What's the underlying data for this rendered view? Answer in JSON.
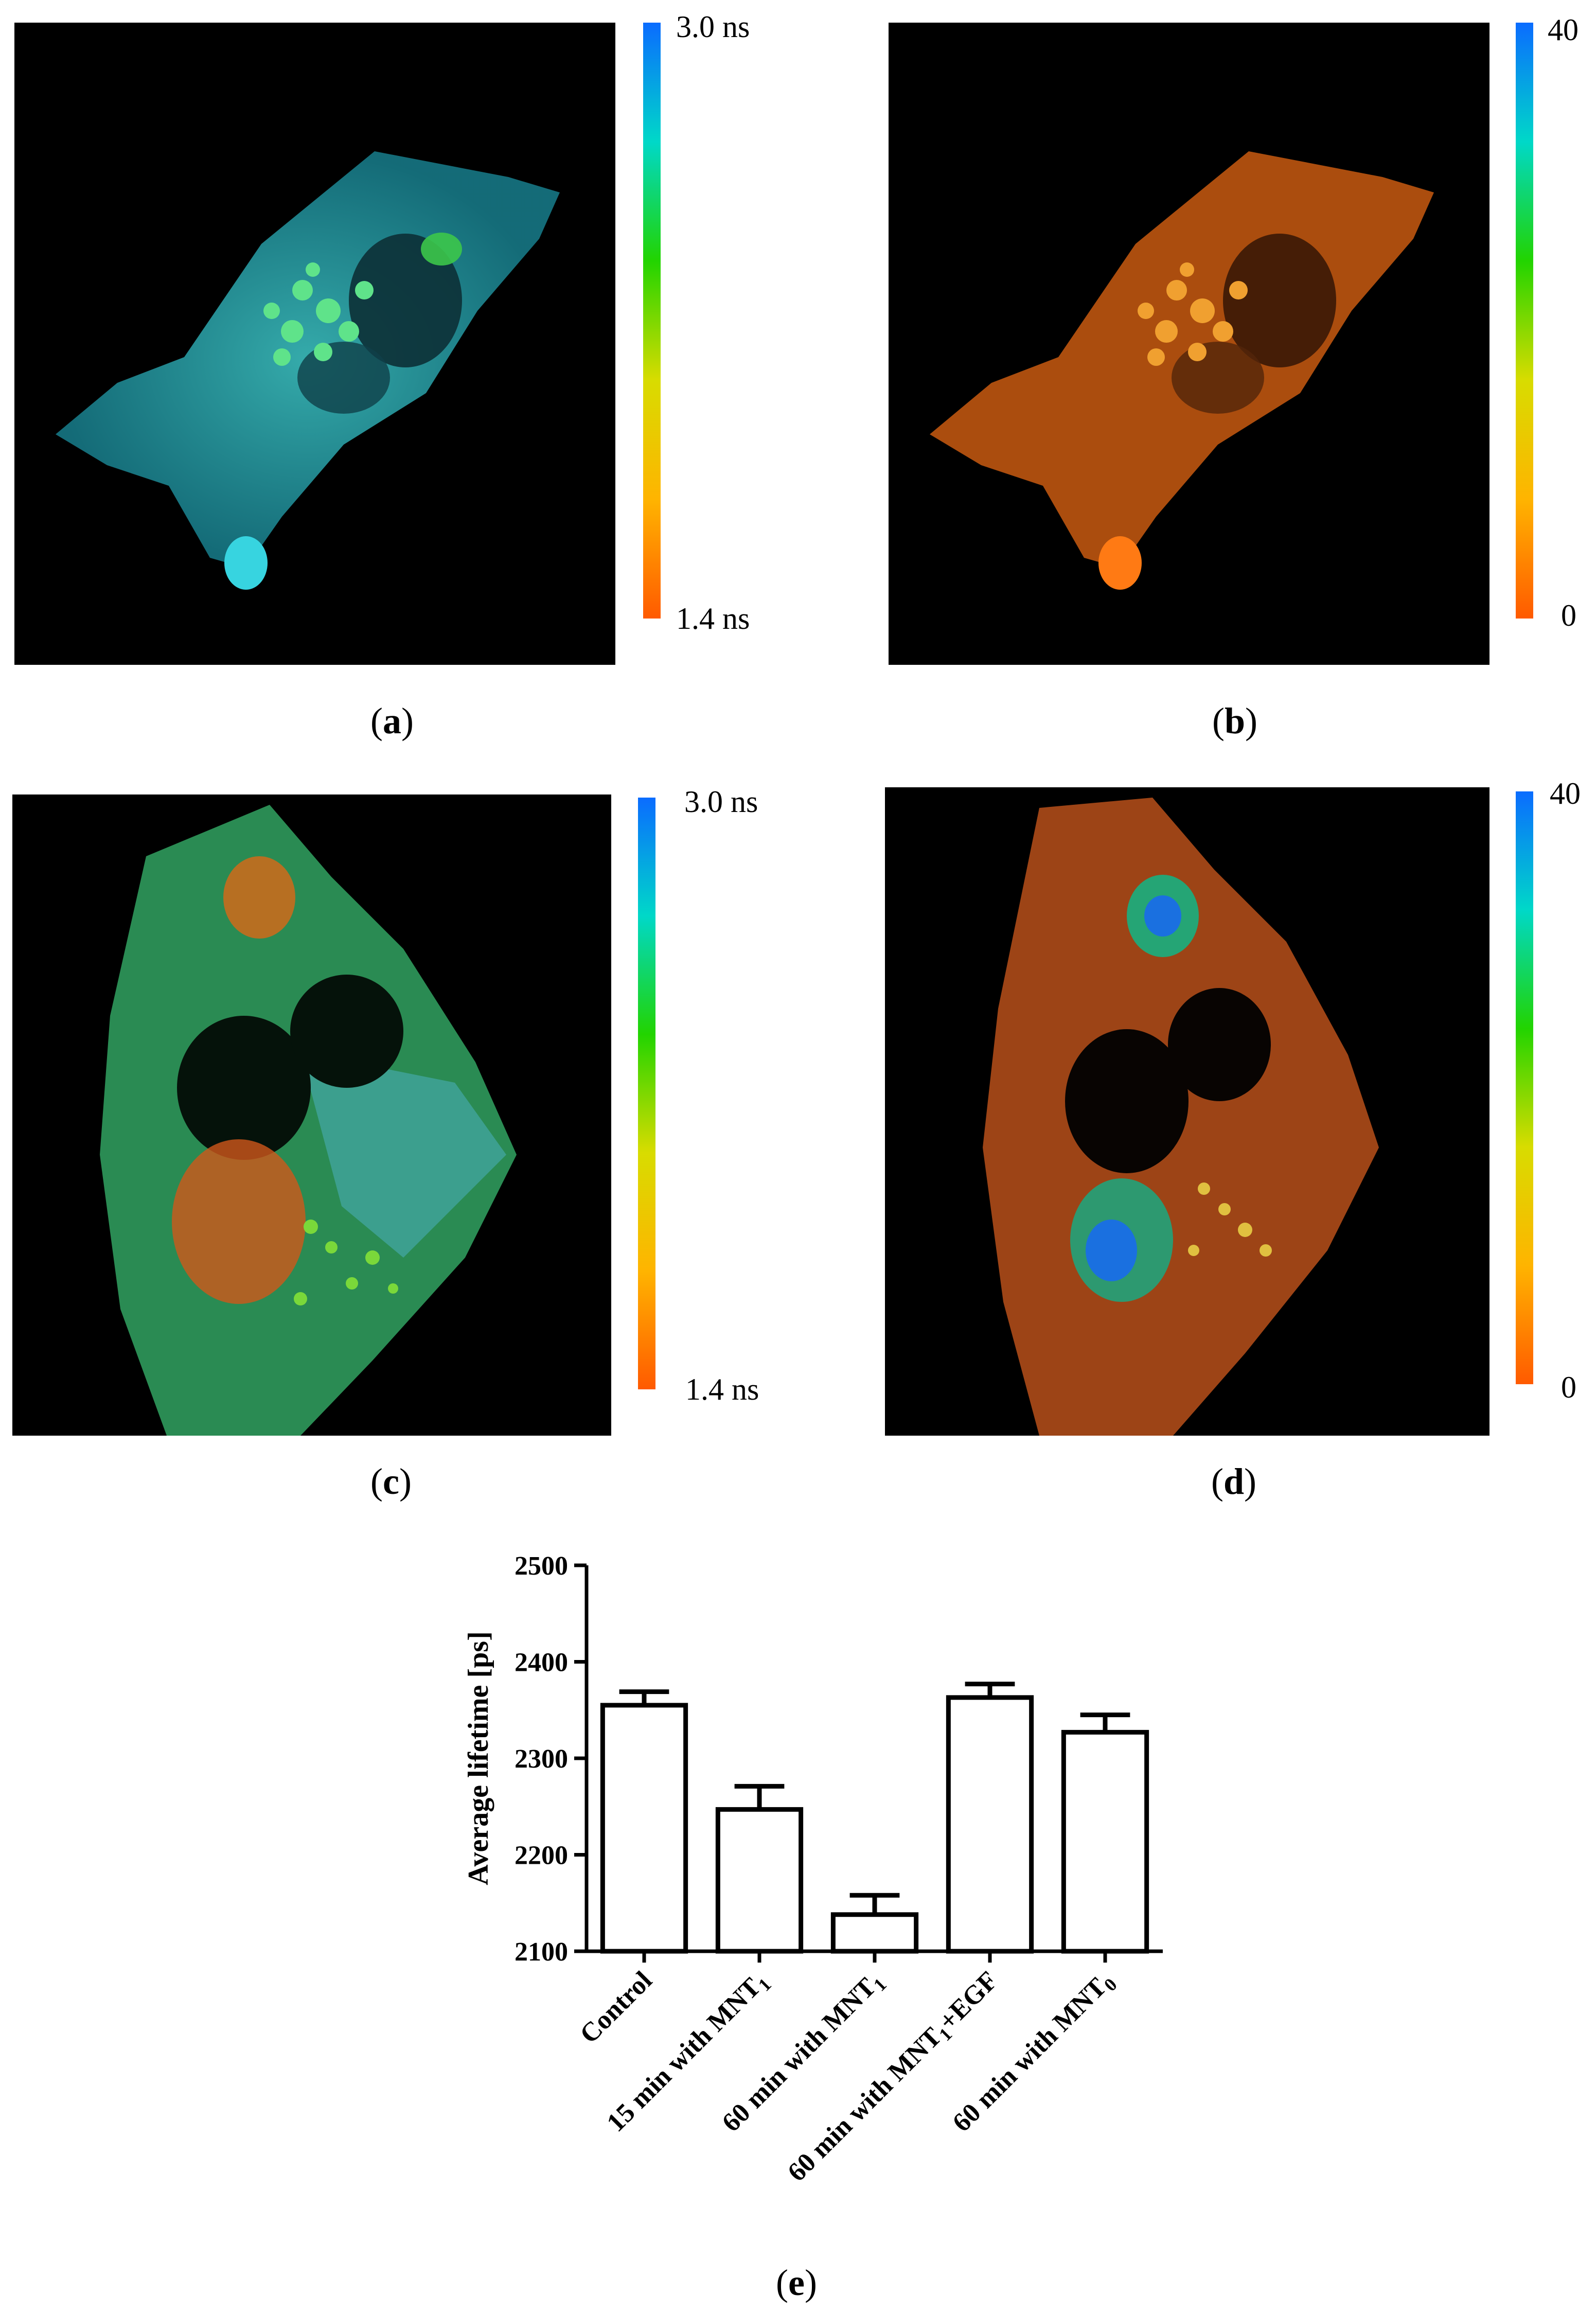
{
  "figure": {
    "panels": [
      {
        "id": "a",
        "caption": "a",
        "colorbar_top": "3.0 ns",
        "colorbar_bottom": "1.4 ns"
      },
      {
        "id": "b",
        "caption": "b",
        "colorbar_top": "40",
        "colorbar_bottom": "0"
      },
      {
        "id": "c",
        "caption": "c",
        "colorbar_top": "3.0  ns",
        "colorbar_bottom": "1.4 ns"
      },
      {
        "id": "d",
        "caption": "d",
        "colorbar_top": "40",
        "colorbar_bottom": "0"
      },
      {
        "id": "e",
        "caption": "e"
      }
    ],
    "colorbar_gradient": [
      "#ff5a00",
      "#ffb400",
      "#d8dc00",
      "#22d400",
      "#00d8c8",
      "#0a6cff"
    ]
  },
  "chart_data": {
    "type": "bar",
    "ylabel": "Average lifetime [ps]",
    "ylim": [
      2100,
      2500
    ],
    "yticks": [
      "2100",
      "2200",
      "2300",
      "2400",
      "2500"
    ],
    "categories": [
      "Control",
      "15 min with MNT1",
      "60 min with MNT1",
      "60 min with MNT1+EGF",
      "60 min with MNT0"
    ],
    "category_parts": [
      {
        "main": "Control",
        "sub": ""
      },
      {
        "main": "15 min with MNT",
        "sub": "1"
      },
      {
        "main": "60 min with MNT",
        "sub": "1"
      },
      {
        "main": "60 min with MNT",
        "sub": "1",
        "after": "+EGF"
      },
      {
        "main": "60 min with MNT",
        "sub": "0"
      }
    ],
    "values": [
      2355,
      2247,
      2138,
      2363,
      2327
    ],
    "errors": [
      14,
      24,
      20,
      14,
      18
    ],
    "bar_fill": "#ffffff",
    "bar_stroke": "#000000"
  }
}
